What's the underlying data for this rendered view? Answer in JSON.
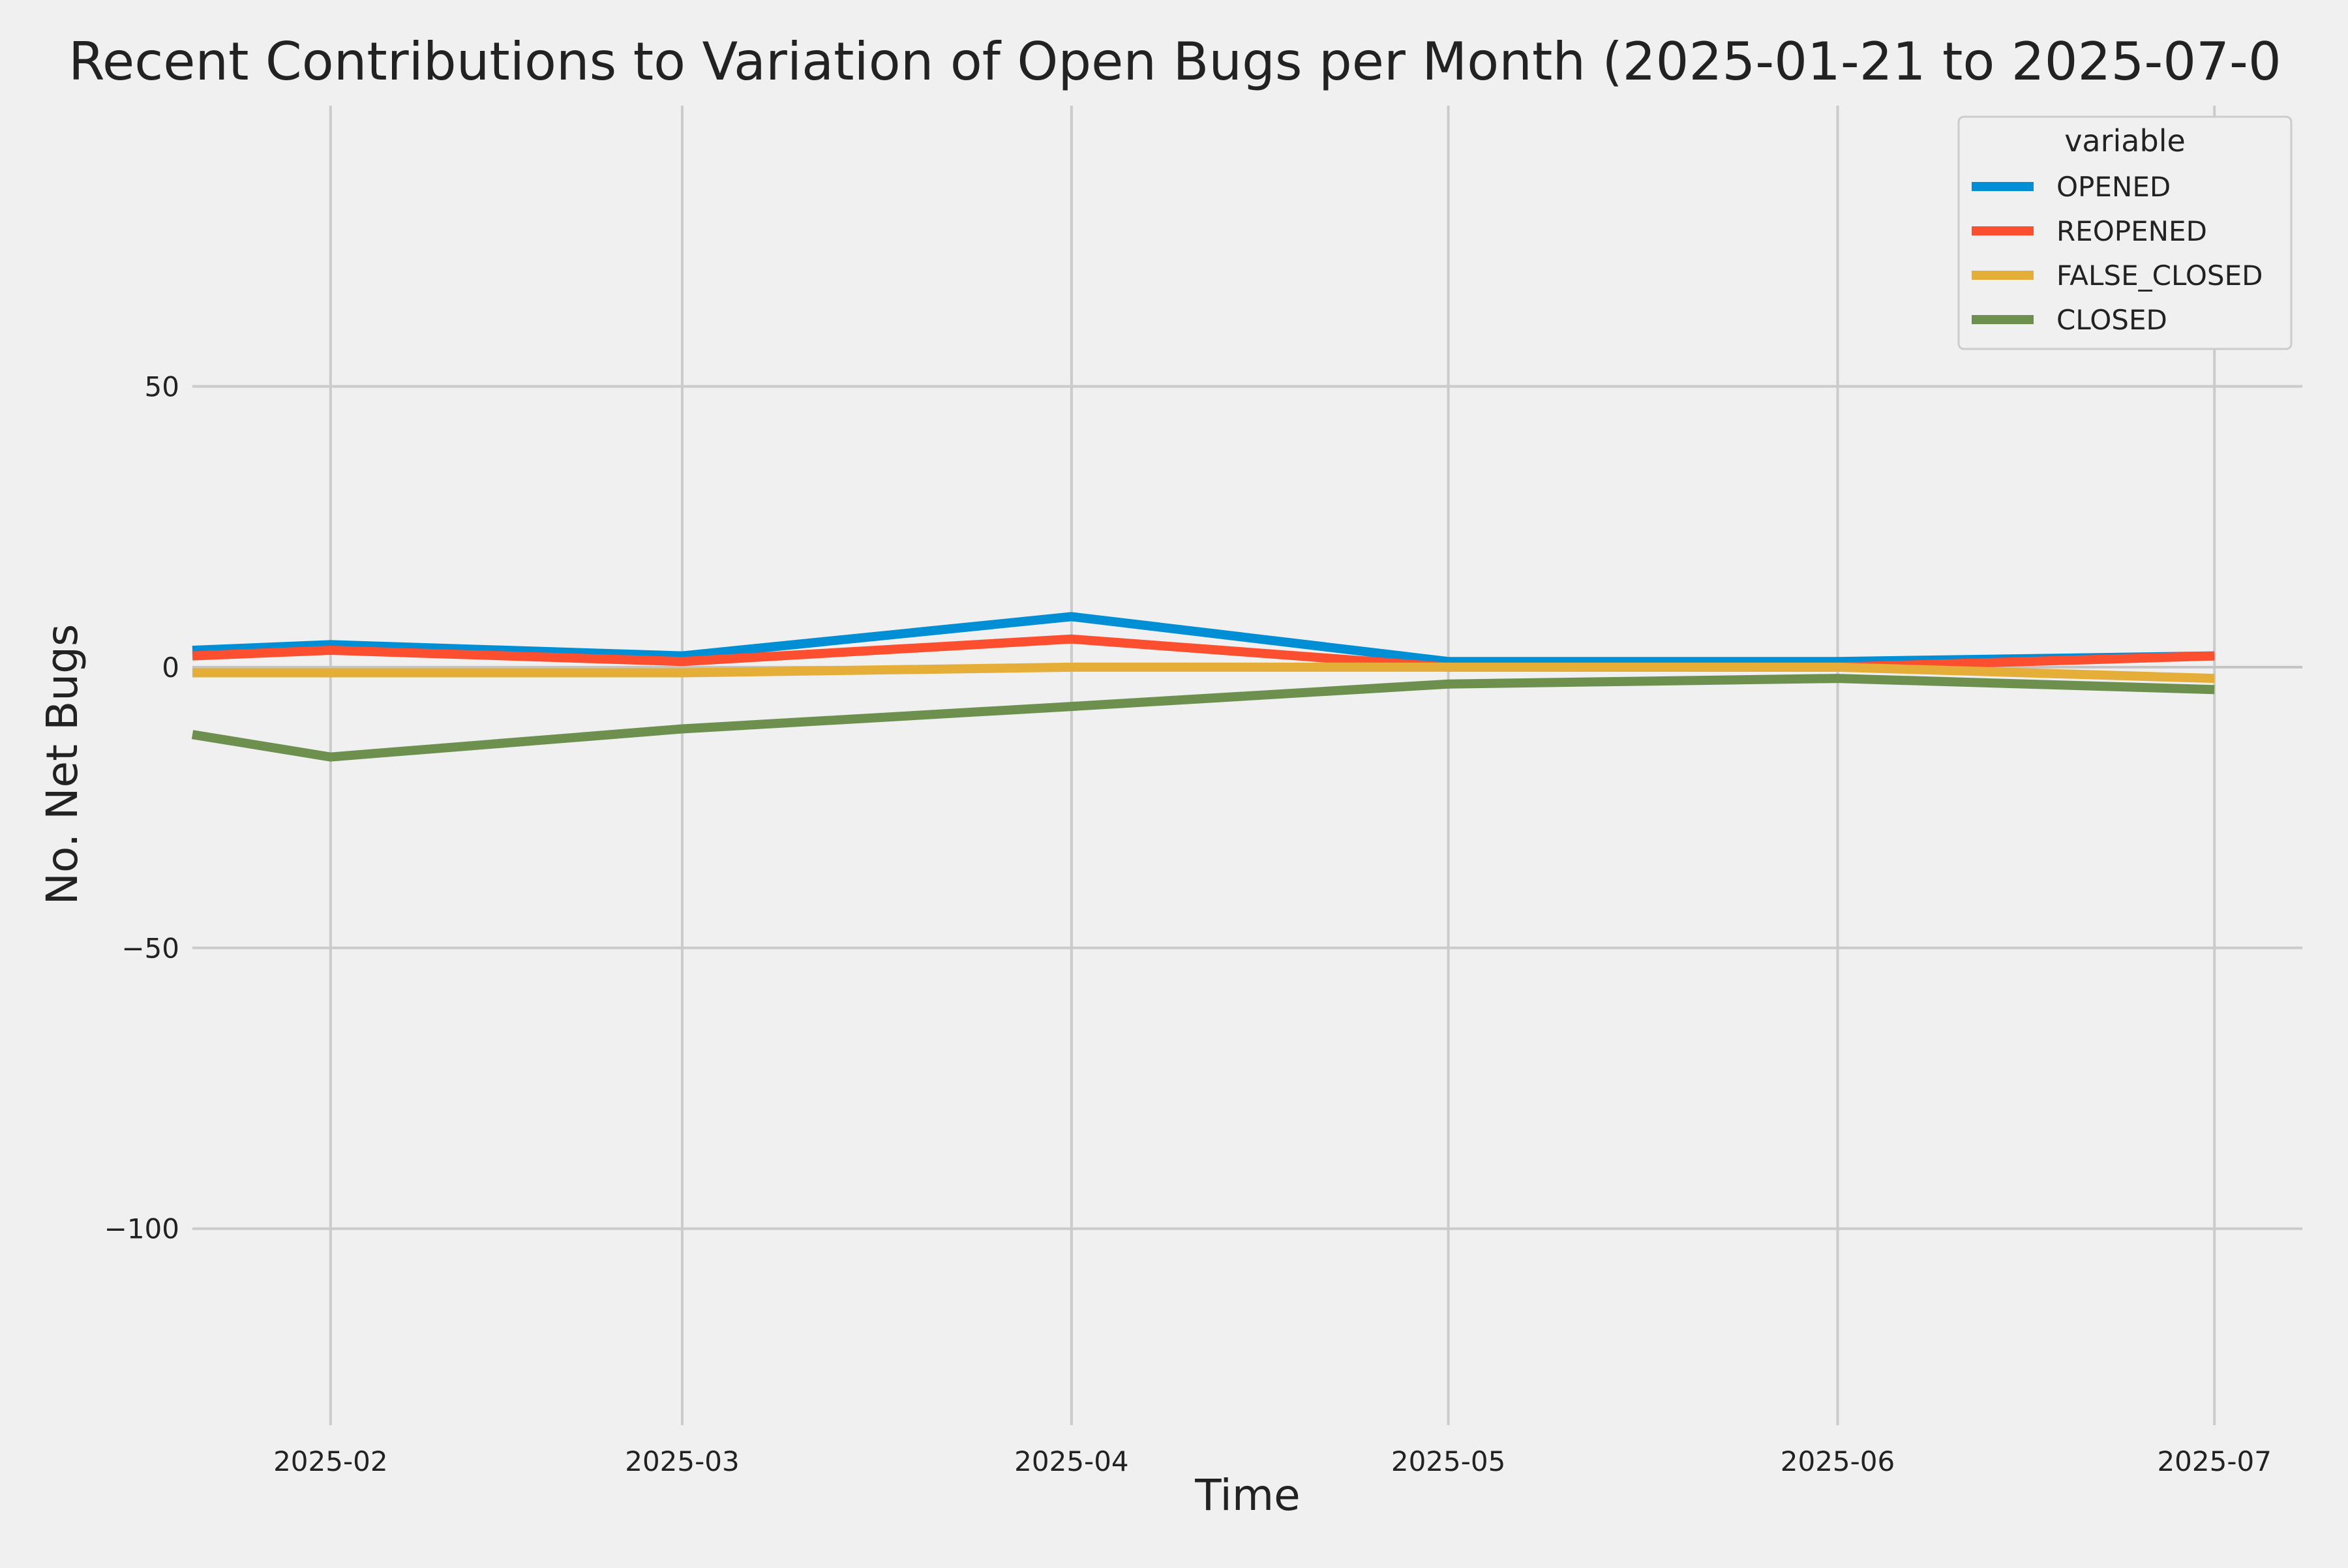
{
  "chart_data": {
    "type": "line",
    "title": "Recent Contributions to Variation of Open Bugs per Month (2025-01-21 to 2025-07-0",
    "xlabel": "Time",
    "ylabel": "No. Net Bugs",
    "x": [
      "2025-01-21",
      "2025-02-01",
      "2025-03-01",
      "2025-04-01",
      "2025-05-01",
      "2025-06-01",
      "2025-07-01"
    ],
    "x_ticks": [
      "2025-02",
      "2025-03",
      "2025-04",
      "2025-05",
      "2025-06",
      "2025-07"
    ],
    "xlim": [
      "2025-01-21",
      "2025-07-08"
    ],
    "y_ticks": [
      50,
      0,
      -50,
      -100
    ],
    "y_tick_labels": [
      "50",
      "0",
      "−50",
      "−100"
    ],
    "ylim": [
      -135,
      100
    ],
    "grid": true,
    "legend": {
      "title": "variable",
      "placement": "top-right"
    },
    "series": [
      {
        "name": "OPENED",
        "color": "#008fd5",
        "values": [
          3,
          4,
          2,
          9,
          1,
          1,
          2
        ]
      },
      {
        "name": "REOPENED",
        "color": "#fc4f30",
        "values": [
          2,
          3,
          1,
          5,
          0,
          0,
          2
        ]
      },
      {
        "name": "FALSE_CLOSED",
        "color": "#e5ae38",
        "values": [
          -1,
          -1,
          -1,
          0,
          0,
          0,
          -2
        ]
      },
      {
        "name": "CLOSED",
        "color": "#6d904f",
        "values": [
          -12,
          -16,
          -11,
          -7,
          -3,
          -2,
          -4
        ]
      }
    ],
    "background_color": "#f0f0f0",
    "grid_color": "#cbcbcb"
  }
}
